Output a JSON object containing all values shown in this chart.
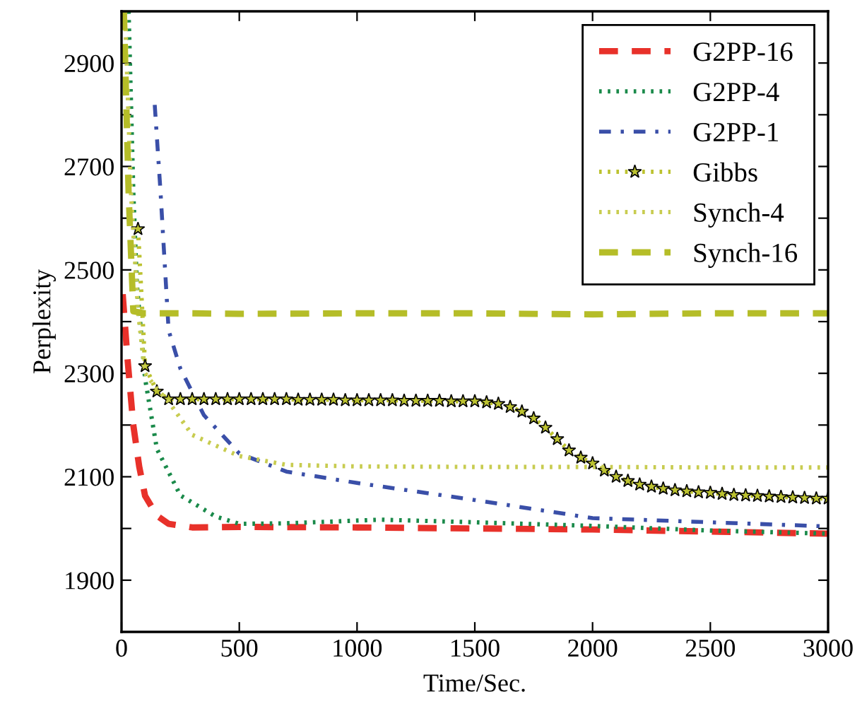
{
  "chart_data": {
    "type": "line",
    "xlabel": "Time/Sec.",
    "ylabel": "Perplexity",
    "xlim": [
      0,
      3000
    ],
    "ylim": [
      1800,
      3000
    ],
    "xticks": [
      0,
      500,
      1000,
      1500,
      2000,
      2500,
      3000
    ],
    "yticks": [
      {
        "value": 1900,
        "label": "1900"
      },
      {
        "value": 2000,
        "label": null
      },
      {
        "value": 2100,
        "label": "2100"
      },
      {
        "value": 2200,
        "label": null
      },
      {
        "value": 2300,
        "label": "2300"
      },
      {
        "value": 2400,
        "label": null
      },
      {
        "value": 2500,
        "label": "2500"
      },
      {
        "value": 2600,
        "label": null
      },
      {
        "value": 2700,
        "label": "2700"
      },
      {
        "value": 2800,
        "label": null
      },
      {
        "value": 2900,
        "label": "2900"
      }
    ],
    "grid": false,
    "legend": "top right",
    "series": [
      {
        "name": "G2PP-16",
        "color": "#e8312a",
        "line_style": "dashed",
        "marker": "none",
        "x": [
          5,
          25,
          50,
          75,
          100,
          150,
          200,
          300,
          500,
          1000,
          1500,
          2000,
          2500,
          3000
        ],
        "values": [
          2453,
          2330,
          2200,
          2120,
          2063,
          2025,
          2009,
          2002,
          2003,
          2002,
          2000,
          1998,
          1994,
          1990
        ]
      },
      {
        "name": "G2PP-4",
        "color": "#1a8a4a",
        "line_style": "dotted",
        "marker": "none",
        "x": [
          30,
          50,
          65,
          100,
          150,
          250,
          400,
          500,
          700,
          1100,
          1500,
          2000,
          2500,
          3000
        ],
        "values": [
          3000,
          2650,
          2473,
          2290,
          2154,
          2064,
          2023,
          2009,
          2010,
          2017,
          2012,
          2005,
          1996,
          1990
        ]
      },
      {
        "name": "G2PP-1",
        "color": "#3a4fa8",
        "line_style": "dashdot",
        "marker": "none",
        "x": [
          141,
          165,
          200,
          250,
          350,
          500,
          700,
          1000,
          1500,
          2000,
          2500,
          3000
        ],
        "values": [
          2819,
          2655,
          2383,
          2309,
          2219,
          2145,
          2110,
          2088,
          2055,
          2020,
          2012,
          2004
        ]
      },
      {
        "name": "Gibbs",
        "color": "#bcc230",
        "line_style": "dotted",
        "marker": "star",
        "x": [
          70,
          100,
          150,
          200,
          250,
          300,
          350,
          400,
          450,
          500,
          550,
          600,
          650,
          700,
          750,
          800,
          850,
          900,
          950,
          1000,
          1050,
          1100,
          1150,
          1200,
          1250,
          1300,
          1350,
          1400,
          1450,
          1500,
          1550,
          1600,
          1650,
          1700,
          1750,
          1800,
          1850,
          1900,
          1950,
          2000,
          2050,
          2100,
          2150,
          2200,
          2250,
          2300,
          2350,
          2400,
          2450,
          2500,
          2550,
          2600,
          2650,
          2700,
          2750,
          2800,
          2850,
          2900,
          2950,
          3000
        ],
        "values": [
          2579,
          2314,
          2265,
          2250,
          2250,
          2250,
          2250,
          2250,
          2250,
          2250,
          2250,
          2250,
          2250,
          2250,
          2249,
          2249,
          2249,
          2249,
          2248,
          2248,
          2248,
          2248,
          2248,
          2247,
          2247,
          2247,
          2247,
          2246,
          2246,
          2246,
          2244,
          2241,
          2235,
          2226,
          2213,
          2195,
          2173,
          2151,
          2137,
          2126,
          2112,
          2100,
          2092,
          2085,
          2081,
          2077,
          2074,
          2072,
          2070,
          2069,
          2067,
          2065,
          2064,
          2063,
          2062,
          2061,
          2060,
          2059,
          2058,
          2058
        ]
      },
      {
        "name": "Synch-4",
        "color": "#c8cc50",
        "line_style": "dotted",
        "marker": "none",
        "x": [
          15,
          40,
          70,
          100,
          150,
          200,
          300,
          500,
          700,
          1000,
          1500,
          2000,
          2500,
          3000
        ],
        "values": [
          3000,
          2650,
          2420,
          2300,
          2270,
          2245,
          2181,
          2140,
          2123,
          2120,
          2119,
          2119,
          2118,
          2118
        ]
      },
      {
        "name": "Synch-16",
        "color": "#b5bd28",
        "line_style": "dashed",
        "marker": "none",
        "x": [
          10,
          30,
          50,
          100,
          300,
          500,
          1000,
          1500,
          2000,
          2500,
          3000
        ],
        "values": [
          3000,
          2650,
          2420,
          2416,
          2416,
          2415,
          2416,
          2416,
          2414,
          2416,
          2416
        ]
      }
    ]
  }
}
